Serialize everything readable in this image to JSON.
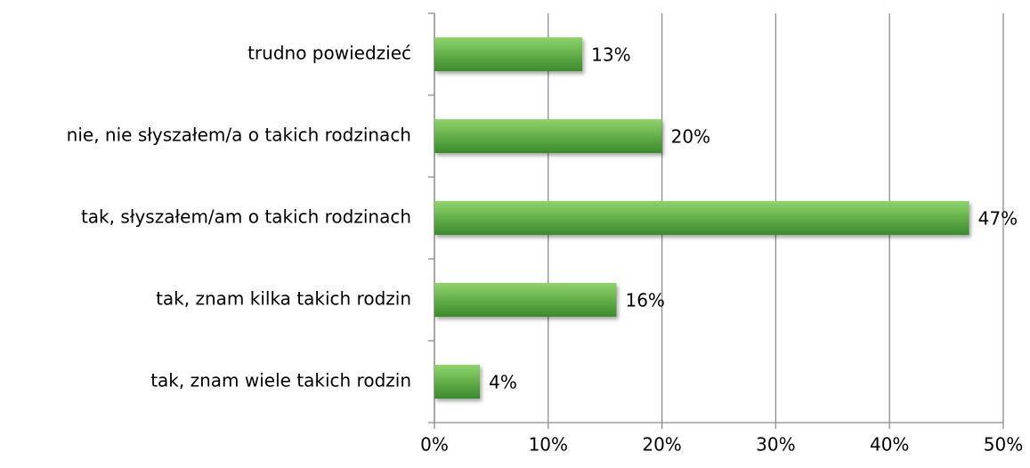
{
  "chart_data": {
    "type": "bar",
    "orientation": "horizontal",
    "categories": [
      "trudno powiedzieć",
      "nie, nie słyszałem/a o takich rodzinach",
      "tak, słyszałem/am o takich rodzinach",
      "tak, znam kilka takich rodzin",
      "tak, znam wiele takich rodzin"
    ],
    "values": [
      13,
      20,
      47,
      16,
      4
    ],
    "value_labels": [
      "13%",
      "20%",
      "47%",
      "16%",
      "4%"
    ],
    "color": "#3a8a2c",
    "xlim": [
      0,
      50
    ],
    "xticks": [
      {
        "value": 0,
        "label": "0%"
      },
      {
        "value": 10,
        "label": "10%"
      },
      {
        "value": 20,
        "label": "20%"
      },
      {
        "value": 30,
        "label": "30%"
      },
      {
        "value": 40,
        "label": "40%"
      },
      {
        "value": 50,
        "label": "50%"
      }
    ],
    "grid": true
  }
}
